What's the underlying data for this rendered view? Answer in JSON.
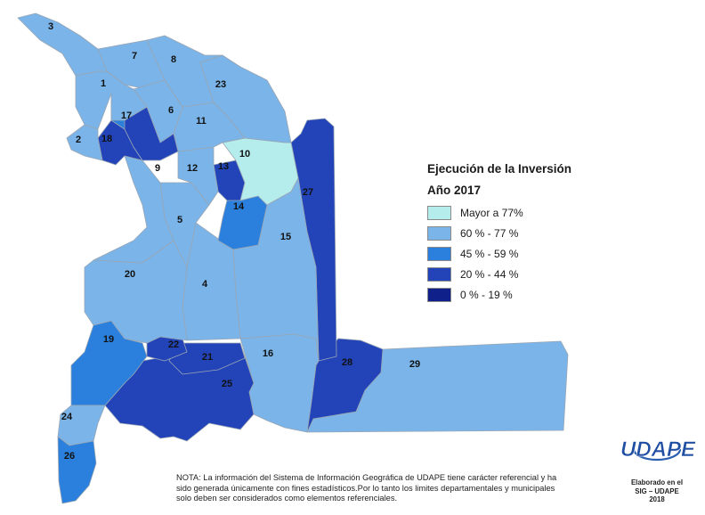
{
  "legend": {
    "title": "Ejecución de la Inversión",
    "year": "Año 2017",
    "items": [
      {
        "label": "Mayor a 77%",
        "color": "#b5ecec"
      },
      {
        "label": "60 % - 77 %",
        "color": "#7ab4e8"
      },
      {
        "label": "45 % - 59 %",
        "color": "#2a80dc"
      },
      {
        "label": "20 % - 44 %",
        "color": "#2244b8"
      },
      {
        "label": "0 % - 19 %",
        "color": "#10208a"
      }
    ]
  },
  "regions": [
    {
      "id": "1",
      "cls": 1
    },
    {
      "id": "2",
      "cls": 1
    },
    {
      "id": "3",
      "cls": 1
    },
    {
      "id": "4",
      "cls": 1
    },
    {
      "id": "5",
      "cls": 1
    },
    {
      "id": "6",
      "cls": 1
    },
    {
      "id": "7",
      "cls": 1
    },
    {
      "id": "8",
      "cls": 1
    },
    {
      "id": "9",
      "cls": 1
    },
    {
      "id": "10",
      "cls": 0
    },
    {
      "id": "11",
      "cls": 1
    },
    {
      "id": "12",
      "cls": 1
    },
    {
      "id": "13",
      "cls": 3
    },
    {
      "id": "14",
      "cls": 2
    },
    {
      "id": "15",
      "cls": 1
    },
    {
      "id": "16",
      "cls": 1
    },
    {
      "id": "17",
      "cls": 2
    },
    {
      "id": "18",
      "cls": 3
    },
    {
      "id": "19",
      "cls": 2
    },
    {
      "id": "20",
      "cls": 1
    },
    {
      "id": "21",
      "cls": 3
    },
    {
      "id": "22",
      "cls": 3
    },
    {
      "id": "23",
      "cls": 1
    },
    {
      "id": "24",
      "cls": 1
    },
    {
      "id": "25",
      "cls": 3
    },
    {
      "id": "26",
      "cls": 2
    },
    {
      "id": "27",
      "cls": 3
    },
    {
      "id": "28",
      "cls": 3
    },
    {
      "id": "29",
      "cls": 1
    }
  ],
  "note": "NOTA: La información del Sistema de Información Geográfica de UDAPE tiene carácter referencial y ha sido generada únicamente con fines estadísticos.Por lo tanto los limites departamentales y municipales solo deben ser considerados como elementos referenciales.",
  "logo": {
    "text": "UDAPE",
    "caption_line1": "Elaborado en el",
    "caption_line2": "SIG – UDAPE",
    "caption_line3": "2018"
  }
}
